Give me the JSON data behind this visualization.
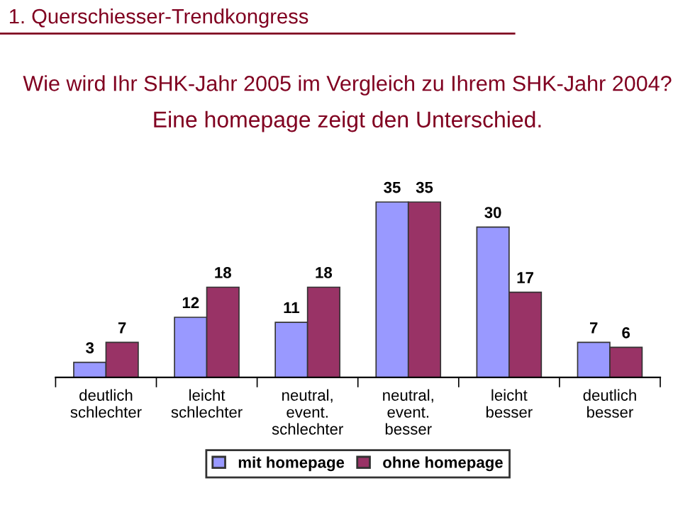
{
  "chart_data": {
    "type": "bar",
    "title": "Wie wird Ihr SHK-Jahr 2005 im Vergleich zu Ihrem SHK-Jahr 2004?",
    "subtitle": "Eine homepage zeigt den Unterschied.",
    "annotations": [
      "1. Querschiesser-Trendkongress"
    ],
    "categories": [
      "deutlich\nschlechter",
      "leicht\nschlechter",
      "neutral,\nevent.\nschlechter",
      "neutral,\nevent.\nbesser",
      "leicht\nbesser",
      "deutlich\nbesser"
    ],
    "series": [
      {
        "name": "mit homepage",
        "color": "#9999ff",
        "values": [
          3,
          12,
          11,
          35,
          30,
          7
        ]
      },
      {
        "name": "ohne homepage",
        "color": "#993366",
        "values": [
          7,
          18,
          18,
          35,
          17,
          6
        ]
      }
    ],
    "data_labels": true,
    "legend": "bottom",
    "grid": false,
    "tick_labels": "x"
  }
}
